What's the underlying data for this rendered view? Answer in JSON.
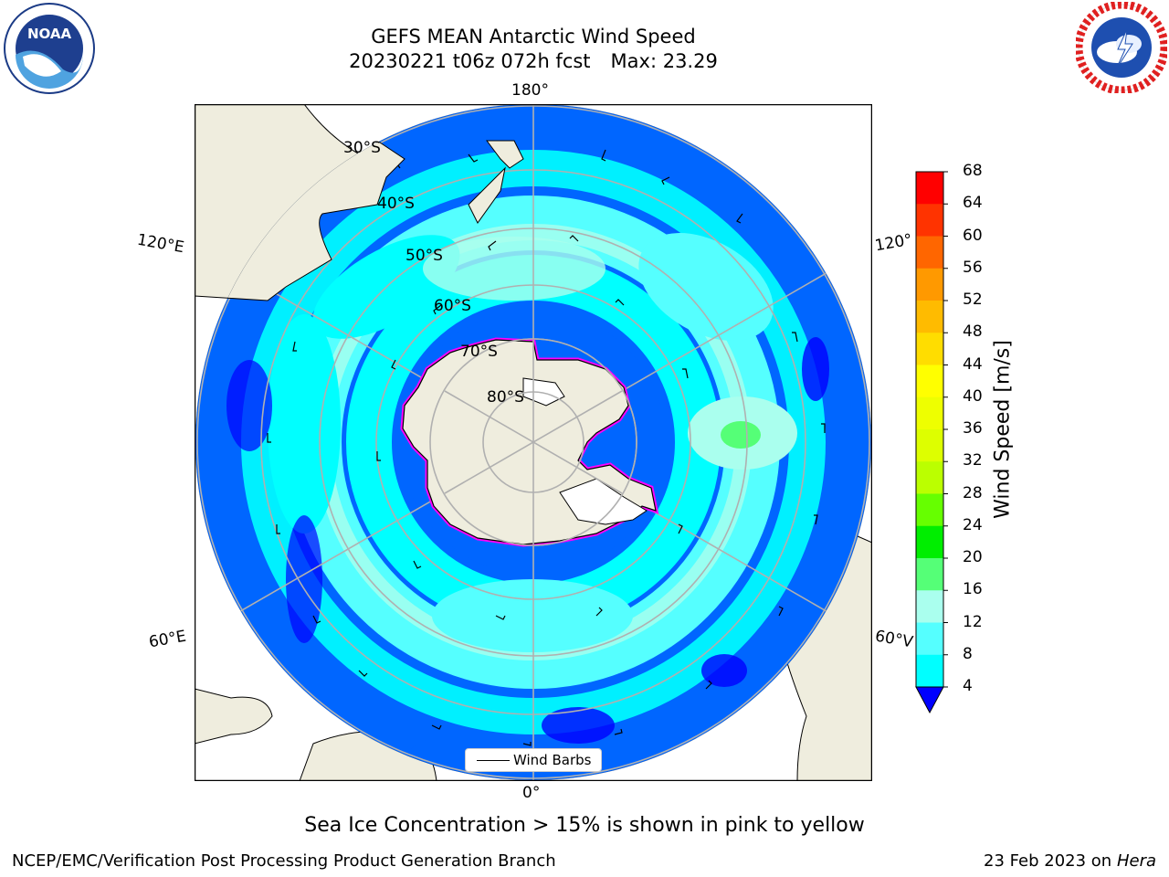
{
  "header": {
    "title_line1": "GEFS MEAN Antarctic Wind Speed",
    "title_date": "20230221 t06z 072h fcst",
    "title_max": "Max: 23.29"
  },
  "logos": {
    "left": {
      "icon": "noaa-logo",
      "text": "NOAA"
    },
    "right": {
      "icon": "national-weather-service-logo"
    }
  },
  "map": {
    "projection": "south-polar-stereographic",
    "longitude_labels": {
      "top": "180°",
      "left_upper": "120°E",
      "right_upper": "120°",
      "left_lower": "60°E",
      "right_lower": "60°V",
      "bottom": "0°"
    },
    "latitude_labels": [
      "30°S",
      "40°S",
      "50°S",
      "60°S",
      "70°S",
      "80°S"
    ],
    "legend_label": "Wind Barbs",
    "land_color": "#efedde",
    "ice_colors": [
      "#ff00ff",
      "#ff66cc",
      "#ffd700"
    ]
  },
  "colorbar": {
    "label": "Wind Speed [m/s]",
    "ticks": [
      "68",
      "64",
      "60",
      "56",
      "52",
      "48",
      "44",
      "40",
      "36",
      "32",
      "28",
      "24",
      "20",
      "16",
      "12",
      "8",
      "4"
    ],
    "colors": [
      "#ff0000",
      "#ff3300",
      "#ff6600",
      "#ff9900",
      "#ffbb00",
      "#ffdd00",
      "#ffff00",
      "#eeff00",
      "#ddff00",
      "#bbff00",
      "#66ff00",
      "#00ee00",
      "#55ff77",
      "#aaffee",
      "#55ffff",
      "#00ffff",
      "#0066ff"
    ],
    "extend_color": "#0000ff"
  },
  "caption": "Sea Ice Concentration > 15% is shown in pink to yellow",
  "footer": {
    "left": "NCEP/EMC/Verification Post Processing Product Generation Branch",
    "right_date": "23 Feb 2023 on",
    "right_host": "Hera"
  }
}
